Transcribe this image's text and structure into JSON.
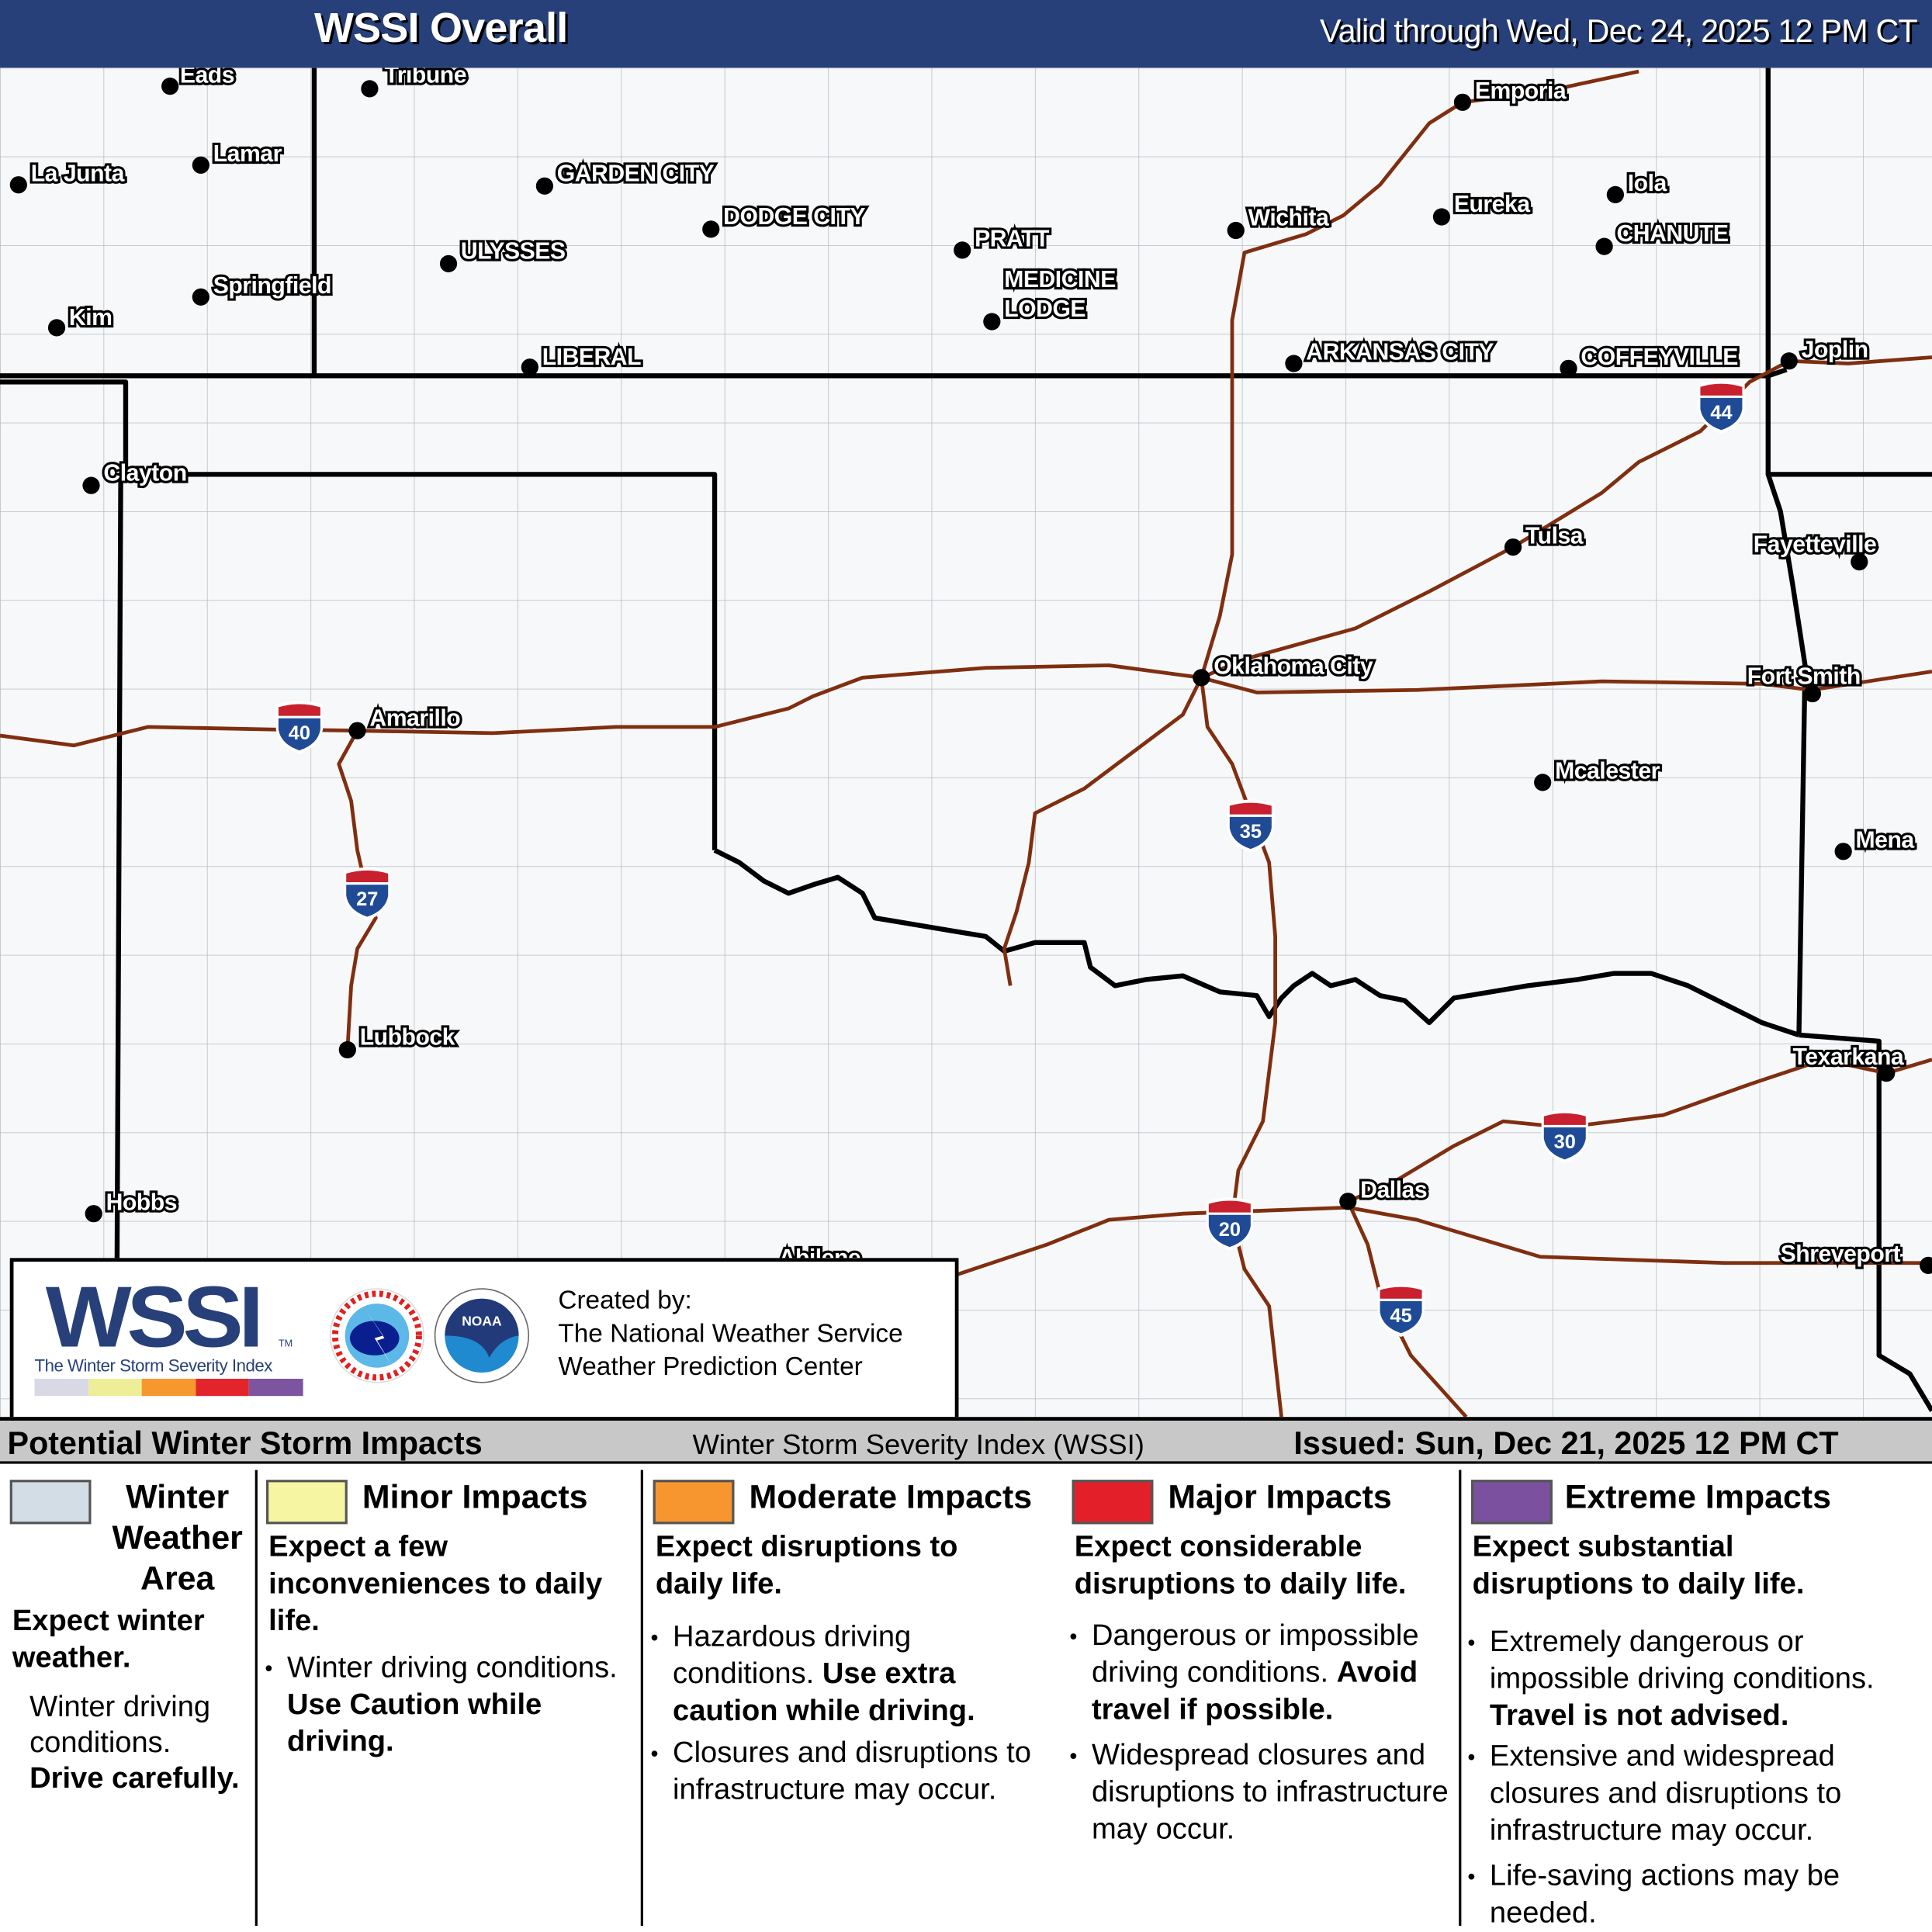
{
  "header": {
    "title": "WSSI Overall",
    "valid": "Valid through Wed, Dec 24, 2025 12 PM CT"
  },
  "map": {
    "colors": {
      "border": "#000000",
      "highway": "#7f2f10",
      "county": "#b8bcc2",
      "background": "#f7f8fa",
      "shield_top": "#c8202f",
      "shield_body": "#1f4b96"
    },
    "cities": [
      {
        "name": "Eads",
        "dot": [
          138,
          15
        ],
        "lbl": [
          146,
          5
        ]
      },
      {
        "name": "Tribune",
        "dot": [
          300,
          17
        ],
        "lbl": [
          312,
          5
        ]
      },
      {
        "name": "La Junta",
        "dot": [
          15,
          95
        ],
        "lbl": [
          25,
          85
        ]
      },
      {
        "name": "Lamar",
        "dot": [
          163,
          79
        ],
        "lbl": [
          173,
          69
        ]
      },
      {
        "name": "Springfield",
        "dot": [
          163,
          186
        ],
        "lbl": [
          173,
          176
        ]
      },
      {
        "name": "Kim",
        "dot": [
          46,
          211
        ],
        "lbl": [
          56,
          202
        ]
      },
      {
        "name": "GARDEN CITY",
        "dot": [
          442,
          96
        ],
        "lbl": [
          452,
          85
        ]
      },
      {
        "name": "ULYSSES",
        "dot": [
          364,
          159
        ],
        "lbl": [
          374,
          148
        ]
      },
      {
        "name": "DODGE CITY",
        "dot": [
          577,
          131
        ],
        "lbl": [
          587,
          120
        ]
      },
      {
        "name": "LIBERAL",
        "dot": [
          430,
          243
        ],
        "lbl": [
          440,
          234
        ]
      },
      {
        "name": "PRATT",
        "dot": [
          781,
          148
        ],
        "lbl": [
          791,
          138
        ]
      },
      {
        "name": "MEDICINE",
        "dot": [
          805,
          206
        ],
        "lbl": [
          815,
          171
        ]
      },
      {
        "name": "LODGE",
        "dot": null,
        "lbl": [
          815,
          195
        ]
      },
      {
        "name": "Wichita",
        "dot": [
          1003,
          132
        ],
        "lbl": [
          1013,
          121
        ]
      },
      {
        "name": "Emporia",
        "dot": [
          1187,
          28
        ],
        "lbl": [
          1197,
          18
        ]
      },
      {
        "name": "Eureka",
        "dot": [
          1170,
          121
        ],
        "lbl": [
          1180,
          110
        ]
      },
      {
        "name": "Iola",
        "dot": [
          1311,
          103
        ],
        "lbl": [
          1321,
          93
        ]
      },
      {
        "name": "CHANUTE",
        "dot": [
          1302,
          145
        ],
        "lbl": [
          1312,
          134
        ]
      },
      {
        "name": "ARKANSAS CITY",
        "dot": [
          1050,
          240
        ],
        "lbl": [
          1060,
          230
        ]
      },
      {
        "name": "COFFEYVILLE",
        "dot": [
          1273,
          244
        ],
        "lbl": [
          1283,
          234
        ]
      },
      {
        "name": "Joplin",
        "dot": [
          1452,
          238
        ],
        "lbl": [
          1462,
          228
        ]
      },
      {
        "name": "Clayton",
        "dot": [
          74,
          339
        ],
        "lbl": [
          84,
          328
        ]
      },
      {
        "name": "Tulsa",
        "dot": [
          1228,
          389
        ],
        "lbl": [
          1238,
          379
        ]
      },
      {
        "name": "Fayetteville",
        "dot": [
          1509,
          401
        ],
        "lbl": [
          1423,
          386
        ]
      },
      {
        "name": "Oklahoma City",
        "dot": [
          975,
          495
        ],
        "lbl": [
          985,
          485
        ]
      },
      {
        "name": "Fort Smith",
        "dot": [
          1471,
          508
        ],
        "lbl": [
          1418,
          493
        ]
      },
      {
        "name": "Amarillo",
        "dot": [
          290,
          538
        ],
        "lbl": [
          300,
          527
        ]
      },
      {
        "name": "Mcalester",
        "dot": [
          1252,
          580
        ],
        "lbl": [
          1262,
          570
        ]
      },
      {
        "name": "Mena",
        "dot": [
          1496,
          636
        ],
        "lbl": [
          1506,
          626
        ]
      },
      {
        "name": "Lubbock",
        "dot": [
          282,
          797
        ],
        "lbl": [
          292,
          786
        ]
      },
      {
        "name": "Texarkana",
        "dot": [
          1531,
          816
        ],
        "lbl": [
          1455,
          802
        ]
      },
      {
        "name": "Hobbs",
        "dot": [
          76,
          930
        ],
        "lbl": [
          86,
          920
        ]
      },
      {
        "name": "Dallas",
        "dot": [
          1094,
          920
        ],
        "lbl": [
          1104,
          910
        ]
      },
      {
        "name": "Abilene",
        "dot": null,
        "lbl": [
          632,
          965
        ]
      },
      {
        "name": "Shreveport",
        "dot": [
          1565,
          972
        ],
        "lbl": [
          1445,
          962
        ]
      }
    ],
    "interstates": [
      {
        "num": "40",
        "pos": [
          243,
          535
        ]
      },
      {
        "num": "27",
        "pos": [
          298,
          670
        ]
      },
      {
        "num": "35",
        "pos": [
          1015,
          615
        ]
      },
      {
        "num": "44",
        "pos": [
          1397,
          275
        ]
      },
      {
        "num": "30",
        "pos": [
          1270,
          867
        ]
      },
      {
        "num": "20",
        "pos": [
          998,
          938
        ]
      },
      {
        "num": "45",
        "pos": [
          1137,
          1008
        ]
      }
    ]
  },
  "credit": {
    "logo": "WSSI",
    "tm": "TM",
    "subtitle": "The Winter Storm Severity Index",
    "nws_logo": "NATIONAL WEATHER SERVICE",
    "noaa_logo": "NOAA",
    "line1": "Created by:",
    "line2": "The National Weather Service",
    "line3": "Weather Prediction Center",
    "scale_colors": [
      "#d9d9e6",
      "#eeee98",
      "#f7982f",
      "#e3242b",
      "#7c549f"
    ]
  },
  "legend": {
    "title": "Potential Winter Storm Impacts",
    "subtitle": "Winter Storm Severity Index (WSSI)",
    "issued": "Issued: Sun, Dec 21, 2025 12 PM CT",
    "categories": [
      {
        "name": "Winter Weather Area",
        "color": "#d3dde6",
        "expect": "Expect winter weather.",
        "text": "Winter driving conditions.",
        "bold": "Drive carefully."
      },
      {
        "name": "Minor Impacts",
        "color": "#f5f5a2",
        "expect": "Expect a few inconveniences to daily life.",
        "bullets": [
          {
            "text": "Winter driving conditions.",
            "bold": "Use Caution while driving."
          }
        ]
      },
      {
        "name": "Moderate Impacts",
        "color": "#f7962f",
        "expect": "Expect disruptions to daily life.",
        "bullets": [
          {
            "text": "Hazardous driving conditions.",
            "bold": "Use extra caution while driving."
          },
          {
            "text": "Closures and disruptions to infrastructure may occur.",
            "bold": ""
          }
        ]
      },
      {
        "name": "Major Impacts",
        "color": "#e3202a",
        "expect": "Expect considerable disruptions to daily life.",
        "bullets": [
          {
            "text": "Dangerous or impossible driving conditions.",
            "bold": "Avoid travel if possible."
          },
          {
            "text": "Widespread closures and disruptions to infrastructure may occur.",
            "bold": ""
          }
        ]
      },
      {
        "name": "Extreme Impacts",
        "color": "#7b519f",
        "expect": "Expect substantial disruptions to daily life.",
        "bullets": [
          {
            "text": "Extremely dangerous or impossible driving conditions.",
            "bold": "Travel is not advised."
          },
          {
            "text": "Extensive and widespread closures and disruptions to infrastructure may occur.",
            "bold": ""
          },
          {
            "text": "Life-saving actions may be needed.",
            "bold": ""
          }
        ]
      }
    ]
  }
}
